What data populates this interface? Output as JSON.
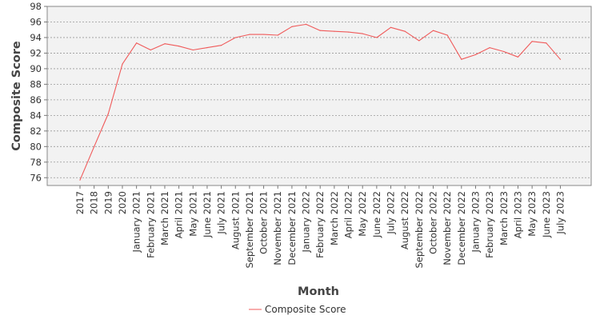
{
  "chart_data": {
    "type": "line",
    "xlabel": "Month",
    "ylabel": "Composite Score",
    "ylim": [
      75,
      98
    ],
    "yticks": [
      76,
      78,
      80,
      82,
      84,
      86,
      88,
      90,
      92,
      94,
      96,
      98
    ],
    "grid": true,
    "legend_position": "bottom-center",
    "categories": [
      "2017",
      "2018",
      "2019",
      "2020",
      "January 2021",
      "February 2021",
      "March 2021",
      "April 2021",
      "May 2021",
      "June 2021",
      "July 2021",
      "August 2021",
      "September 2021",
      "October 2021",
      "November 2021",
      "December 2021",
      "January 2022",
      "February 2022",
      "March 2022",
      "April 2022",
      "May 2022",
      "June 2022",
      "July 2022",
      "August 2022",
      "September 2022",
      "October 2022",
      "November 2022",
      "December 2022",
      "January 2023",
      "February 2023",
      "March 2023",
      "April 2023",
      "May 2023",
      "June 2023",
      "July 2023"
    ],
    "series": [
      {
        "name": "Composite Score",
        "color": "#f05a5a",
        "values": [
          75.7,
          80.0,
          84.2,
          90.6,
          93.3,
          92.4,
          93.2,
          92.9,
          92.4,
          92.7,
          93.0,
          94.0,
          94.4,
          94.4,
          94.3,
          95.4,
          95.7,
          94.9,
          94.8,
          94.7,
          94.5,
          94.0,
          95.3,
          94.8,
          93.6,
          94.9,
          94.3,
          91.2,
          91.8,
          92.7,
          92.2,
          91.5,
          93.5,
          93.3,
          91.2
        ]
      }
    ]
  }
}
